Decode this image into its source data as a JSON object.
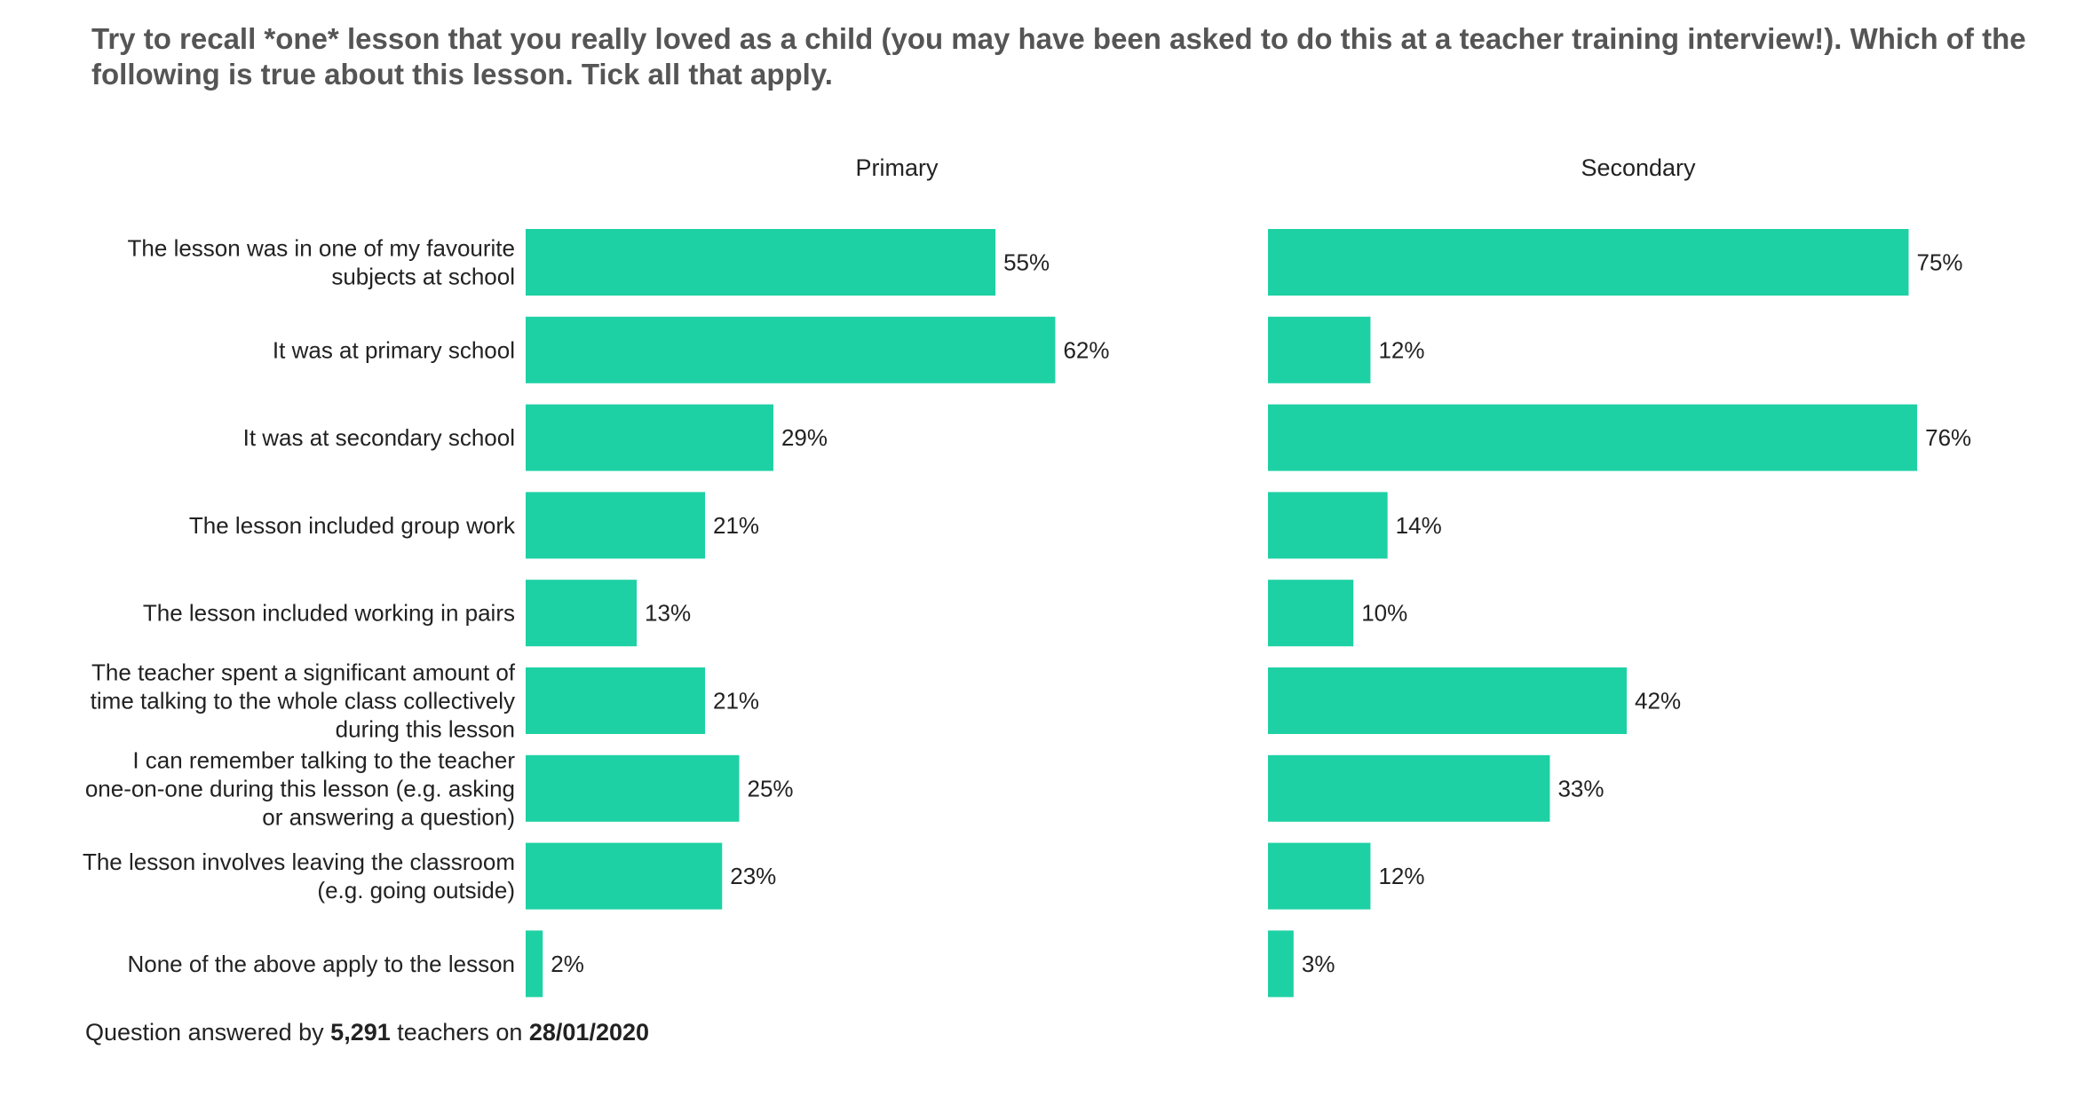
{
  "question": "Try to recall *one* lesson that you really loved as a child (you may have been asked to do this at a teacher training interview!). Which of the following is true about this lesson. Tick all that apply.",
  "footer": {
    "prefix": "Question answered by",
    "count": "5,291",
    "middle": "teachers on",
    "date": "28/01/2020"
  },
  "colors": {
    "bar": "#1ed1a4",
    "text": "#222222",
    "question": "#555555"
  },
  "chart_data": {
    "type": "bar",
    "orientation": "horizontal",
    "categories": [
      "The lesson was in one of my favourite subjects at school",
      "It was at primary school",
      "It was at secondary school",
      "The lesson included group work",
      "The lesson included working in pairs",
      "The teacher spent a significant amount of time talking to the whole class collectively during this lesson",
      "I can remember talking to the teacher one-on-one during this lesson (e.g. asking or answering a question)",
      "The lesson involves leaving the classroom (e.g. going outside)",
      "None of the above apply to the lesson"
    ],
    "category_lines": [
      [
        "The lesson was in one of my favourite",
        "subjects at school"
      ],
      [
        "It was at primary school"
      ],
      [
        "It was at secondary school"
      ],
      [
        "The lesson included group work"
      ],
      [
        "The lesson included working in pairs"
      ],
      [
        "The teacher spent a significant amount of",
        "time talking to the whole class collectively",
        "during this lesson"
      ],
      [
        "I can remember talking to the teacher",
        "one-on-one during this lesson (e.g. asking",
        "or answering a question)"
      ],
      [
        "The lesson involves leaving the classroom",
        "(e.g. going outside)"
      ],
      [
        "None of the above apply to the lesson"
      ]
    ],
    "series": [
      {
        "name": "Primary",
        "values": [
          55,
          62,
          29,
          21,
          13,
          21,
          25,
          23,
          2
        ]
      },
      {
        "name": "Secondary",
        "values": [
          75,
          12,
          76,
          14,
          10,
          42,
          33,
          12,
          3
        ]
      }
    ],
    "value_suffix": "%",
    "xlim": [
      0,
      100
    ],
    "grid": false,
    "legend": "none"
  }
}
